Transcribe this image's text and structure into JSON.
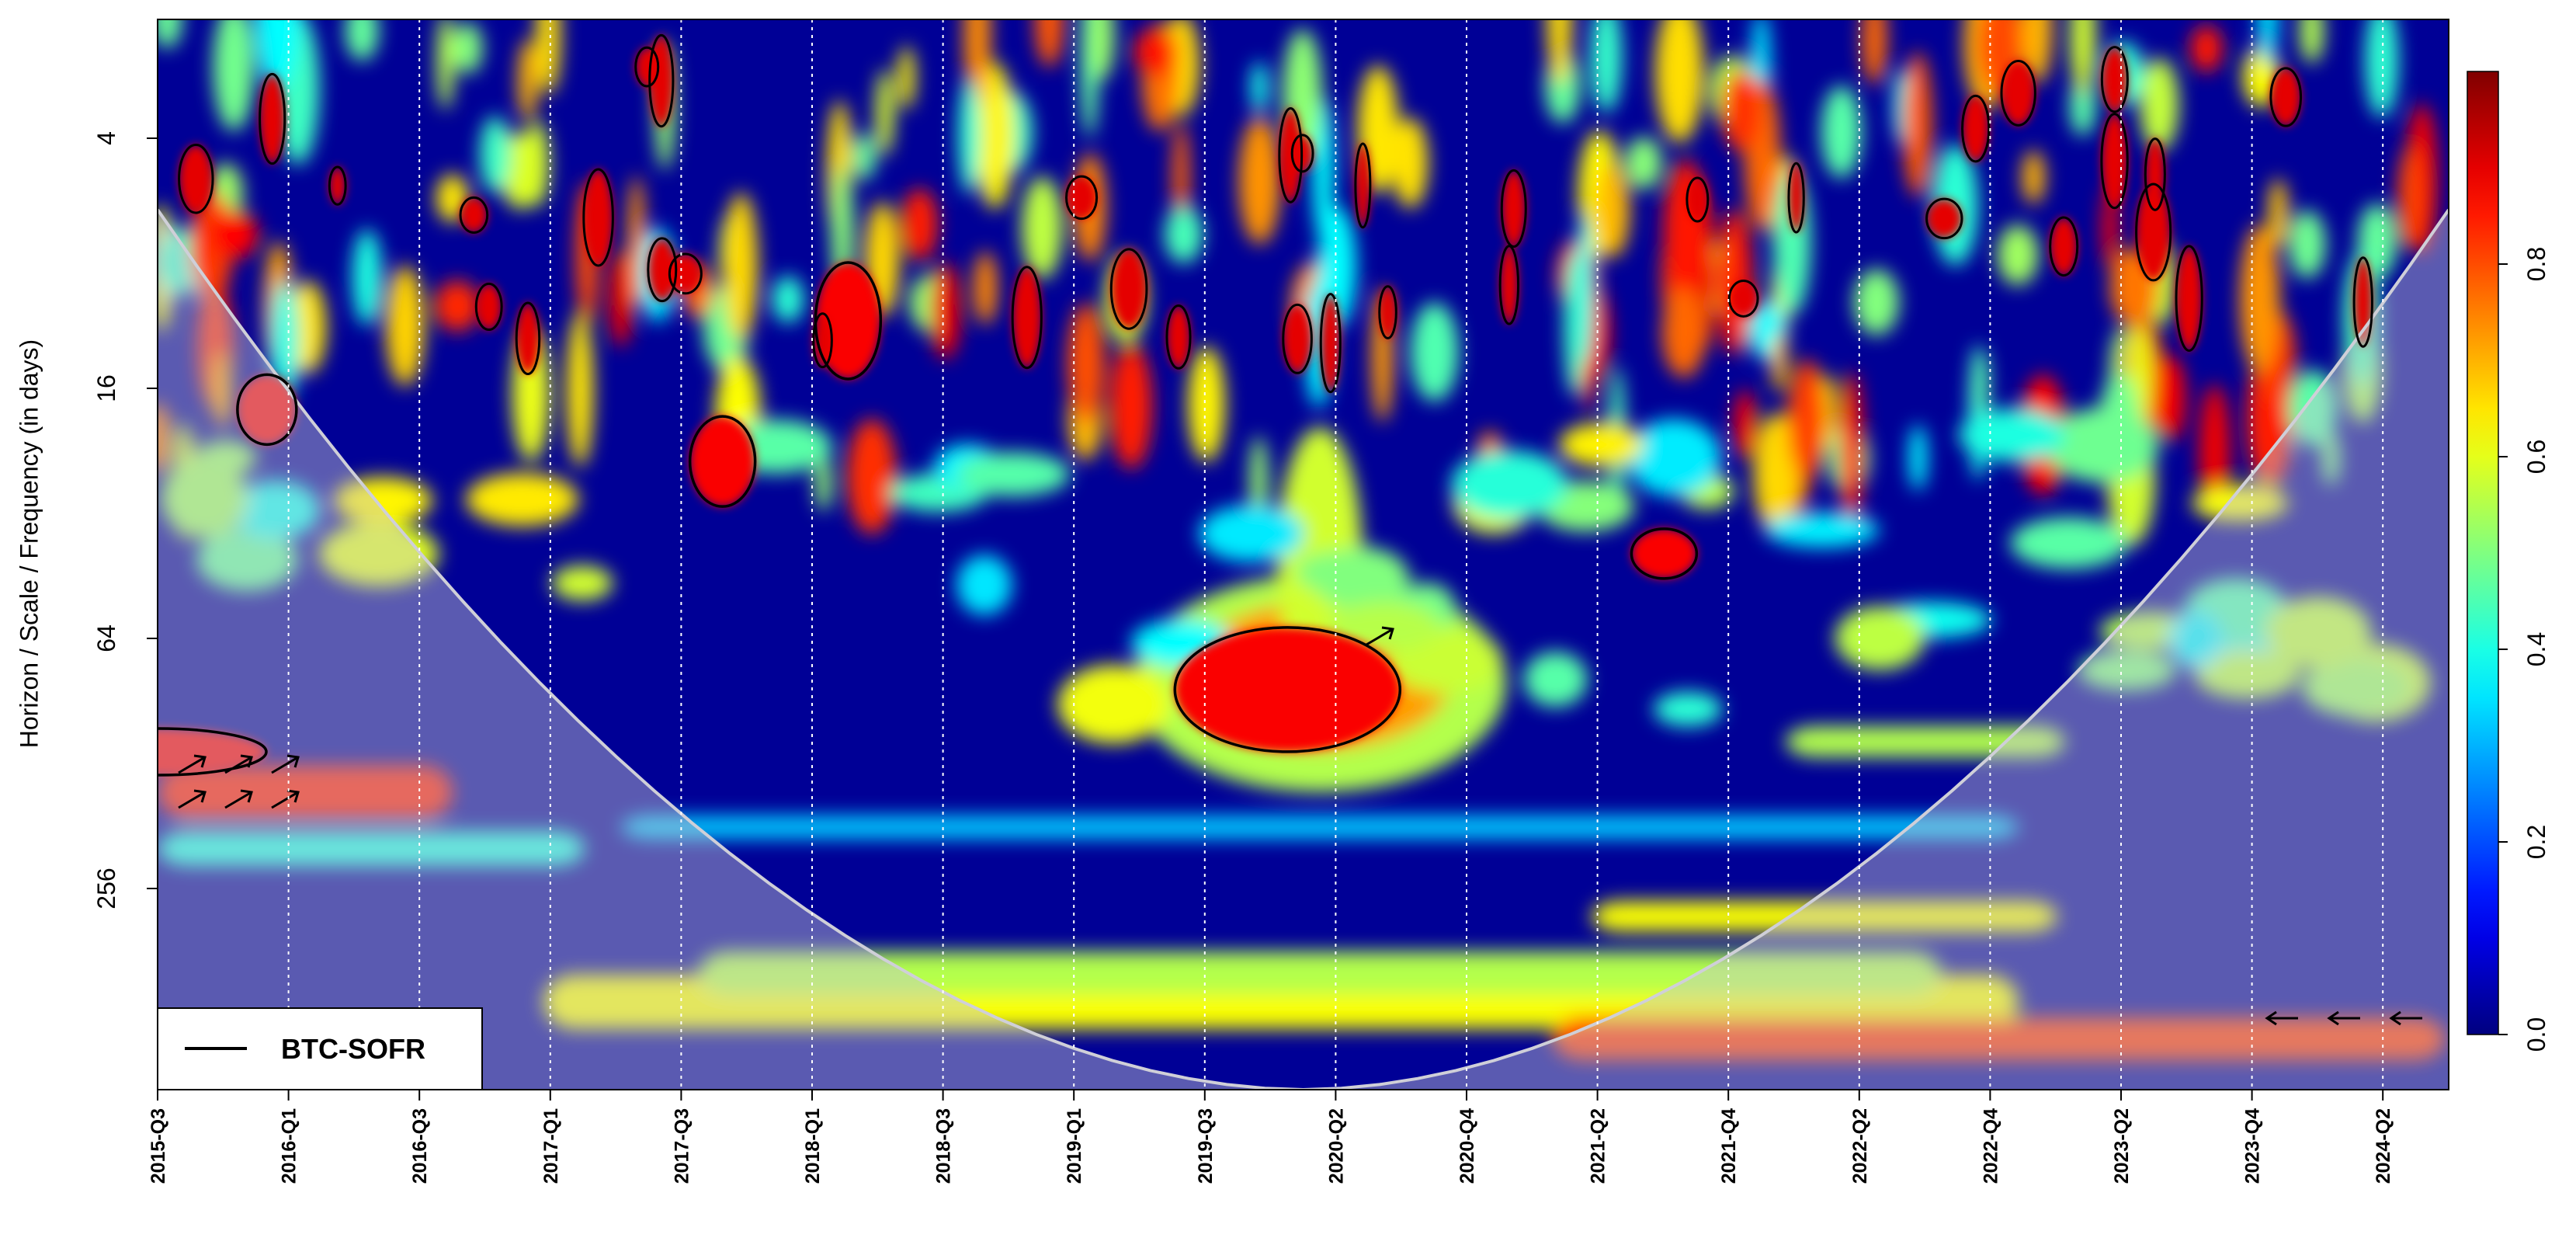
{
  "chart_data": {
    "type": "heatmap",
    "title": "",
    "ylabel": "Horizon / Scale / Frequency (in days)",
    "xlabel": "",
    "x_tick_labels": [
      "2015-Q3",
      "2016-Q1",
      "2016-Q3",
      "2017-Q1",
      "2017-Q3",
      "2018-Q1",
      "2018-Q3",
      "2019-Q1",
      "2019-Q3",
      "2020-Q2",
      "2020-Q4",
      "2021-Q2",
      "2021-Q4",
      "2022-Q2",
      "2022-Q4",
      "2023-Q2",
      "2023-Q4",
      "2024-Q2"
    ],
    "y_ticks": [
      {
        "label": "4",
        "value": 4
      },
      {
        "label": "16",
        "value": 16
      },
      {
        "label": "64",
        "value": 64
      },
      {
        "label": "256",
        "value": 256
      }
    ],
    "y_scale": "log2",
    "ylim": [
      2,
      1024
    ],
    "colorbar": {
      "min": 0.0,
      "max": 1.0,
      "ticks": [
        "0.0",
        "0.2",
        "0.4",
        "0.6",
        "0.8"
      ],
      "tick_values": [
        0.0,
        0.2,
        0.4,
        0.6,
        0.8
      ],
      "colormap": "jet"
    },
    "legend": {
      "label": "BTC-SOFR",
      "placement": "bottom-left"
    },
    "significant_regions": [
      {
        "date": "2015-Q4",
        "period": 18
      },
      {
        "date": "2017-Q4",
        "period": 24
      },
      {
        "date": "2018-Q2",
        "period": 11
      },
      {
        "date": "2020-Q1",
        "period": 85
      },
      {
        "date": "2021-Q3",
        "period": 40
      },
      {
        "date": "2015-Q3",
        "period": 120
      }
    ],
    "grid": "vertical dotted lines at each x tick",
    "cone_of_influence": true
  }
}
